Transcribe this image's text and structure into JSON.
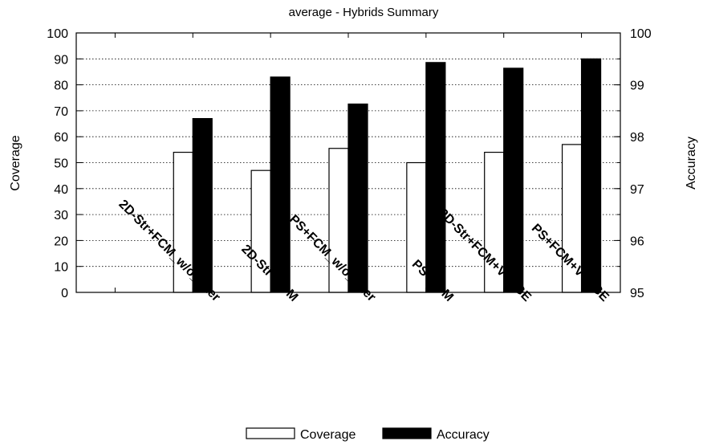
{
  "chart_data": {
    "type": "bar",
    "title": "average - Hybrids Summary",
    "ylabel": "Coverage",
    "y2label": "Accuracy",
    "ylim": [
      0,
      100
    ],
    "y2lim": [
      95,
      100
    ],
    "yticks": [
      0,
      10,
      20,
      30,
      40,
      50,
      60,
      70,
      80,
      90,
      100
    ],
    "y2ticks": [
      95,
      96,
      97,
      98,
      99,
      100
    ],
    "grid": true,
    "legend_position": "bottom",
    "categories": [
      "",
      "2D-Str+FCM_w/o_filter",
      "2D-Str+FCM",
      "PS+FCM_w/o_filter",
      "PS+FCM",
      "2D-Str+FCM+VTAGE",
      "PS+FCM+VTAGE"
    ],
    "series": [
      {
        "name": "Coverage",
        "axis": "left",
        "color": "#ffffff",
        "values": [
          null,
          54,
          47,
          55.5,
          50,
          54,
          57
        ]
      },
      {
        "name": "Accuracy",
        "axis": "right",
        "color": "#000000",
        "values": [
          null,
          98.35,
          99.15,
          98.63,
          99.43,
          99.32,
          99.5
        ]
      }
    ]
  }
}
